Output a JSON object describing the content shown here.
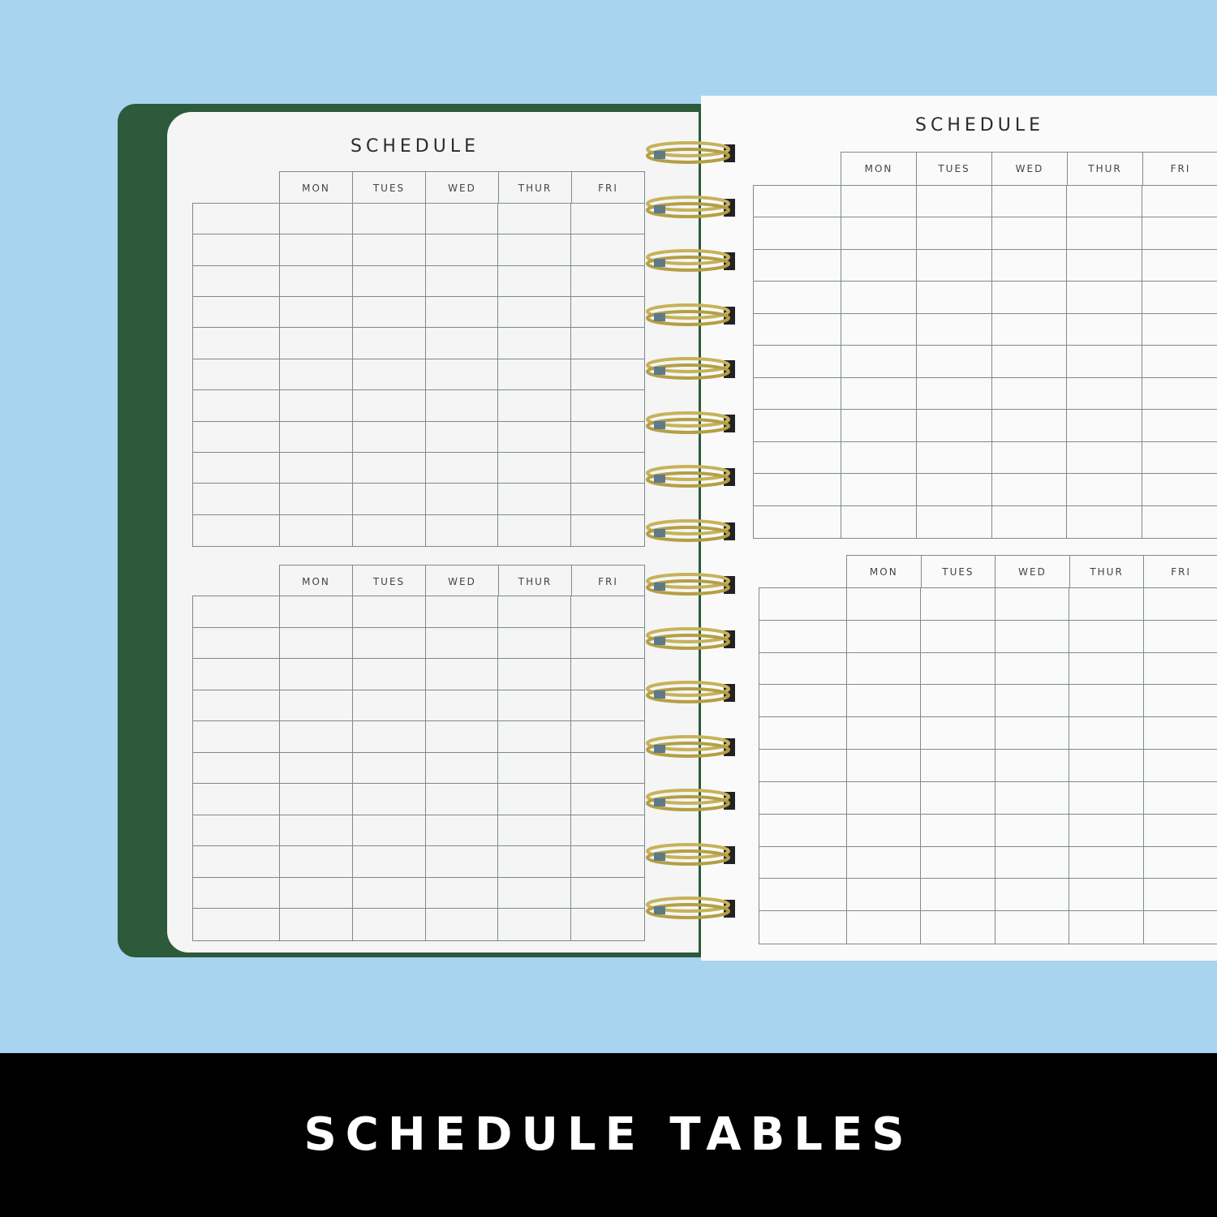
{
  "left_page": {
    "title": "SCHEDULE",
    "days": [
      "MON",
      "TUES",
      "WED",
      "THUR",
      "FRI"
    ]
  },
  "right_page": {
    "title": "SCHEDULE",
    "days": [
      "MON",
      "TUES",
      "WED",
      "THUR",
      "FRI"
    ]
  },
  "banner": {
    "text": "SCHEDULE TABLES"
  },
  "colors": {
    "background": "#a9d4ef",
    "cover": "#2c5a3a",
    "rings": "#c7b25a",
    "banner": "#000000"
  }
}
